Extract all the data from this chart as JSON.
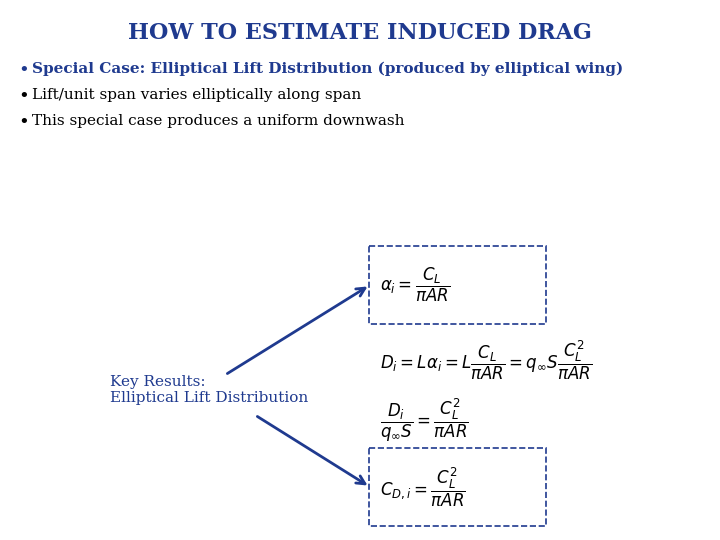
{
  "title": "HOW TO ESTIMATE INDUCED DRAG",
  "title_color": "#1F3A8F",
  "title_fontsize": 16,
  "background_color": "#FFFFFF",
  "bullet_color": "#1F3A8F",
  "bullet1": "Special Case: Elliptical Lift Distribution (produced by elliptical wing)",
  "bullet2": "Lift/unit span varies elliptically along span",
  "bullet3": "This special case produces a uniform downwash",
  "bullet_fontsize": 11,
  "key_results_text": "Key Results:\nElliptical Lift Distribution",
  "key_results_color": "#1F3A8F",
  "key_results_fontsize": 11,
  "eq_color": "#000000",
  "eq_fontsize": 12,
  "arrow_color": "#1F3A8F",
  "box_color": "#1F3A8F"
}
